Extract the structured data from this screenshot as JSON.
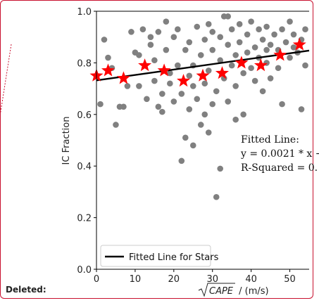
{
  "deleted_label": "Deleted:",
  "chart_data": {
    "type": "scatter",
    "xlabel_sqrt_text": "CAPE",
    "xlabel_suffix": " / (m/s)",
    "ylabel": "IC Fraction",
    "xlim": [
      0,
      55
    ],
    "ylim": [
      0.0,
      1.0
    ],
    "xticks": [
      "0",
      "10",
      "20",
      "30",
      "40",
      "50"
    ],
    "yticks": [
      "0.0",
      "0.2",
      "0.4",
      "0.6",
      "0.8",
      "1.0"
    ],
    "legend": {
      "placement": "lower-left",
      "label": "Fitted Line for Stars"
    },
    "annotation": [
      "Fitted Line:",
      "y = 0.0021 * x +",
      "R-Squared = 0."
    ],
    "colors": {
      "points": "#808080",
      "stars": "#ff0000",
      "line": "#000000",
      "frame": "#c8102e"
    },
    "fitted_line": {
      "slope": 0.0021,
      "intercept": 0.732
    },
    "stars": [
      {
        "x": 0,
        "y": 0.75
      },
      {
        "x": 3,
        "y": 0.77
      },
      {
        "x": 7,
        "y": 0.74
      },
      {
        "x": 12.5,
        "y": 0.79
      },
      {
        "x": 17.5,
        "y": 0.77
      },
      {
        "x": 22.5,
        "y": 0.73
      },
      {
        "x": 27.5,
        "y": 0.75
      },
      {
        "x": 32.5,
        "y": 0.76
      },
      {
        "x": 37.5,
        "y": 0.8
      },
      {
        "x": 42.5,
        "y": 0.79
      },
      {
        "x": 47.5,
        "y": 0.83
      },
      {
        "x": 52.5,
        "y": 0.87
      }
    ],
    "points": [
      {
        "x": 1,
        "y": 0.64
      },
      {
        "x": 2,
        "y": 0.89
      },
      {
        "x": 3,
        "y": 0.82
      },
      {
        "x": 4,
        "y": 0.78
      },
      {
        "x": 5,
        "y": 0.56
      },
      {
        "x": 6,
        "y": 0.63
      },
      {
        "x": 7,
        "y": 0.63
      },
      {
        "x": 8,
        "y": 0.71
      },
      {
        "x": 9,
        "y": 0.92
      },
      {
        "x": 10,
        "y": 0.84
      },
      {
        "x": 11,
        "y": 0.83
      },
      {
        "x": 11,
        "y": 0.71
      },
      {
        "x": 12,
        "y": 0.93
      },
      {
        "x": 13,
        "y": 0.66
      },
      {
        "x": 14,
        "y": 0.87
      },
      {
        "x": 15,
        "y": 0.81
      },
      {
        "x": 15,
        "y": 0.73
      },
      {
        "x": 16,
        "y": 0.63
      },
      {
        "x": 16,
        "y": 0.92
      },
      {
        "x": 17,
        "y": 0.68
      },
      {
        "x": 17,
        "y": 0.61
      },
      {
        "x": 18,
        "y": 0.85
      },
      {
        "x": 19,
        "y": 0.76
      },
      {
        "x": 19,
        "y": 0.72
      },
      {
        "x": 20,
        "y": 0.9
      },
      {
        "x": 20,
        "y": 0.65
      },
      {
        "x": 21,
        "y": 0.93
      },
      {
        "x": 21,
        "y": 0.79
      },
      {
        "x": 22,
        "y": 0.42
      },
      {
        "x": 22,
        "y": 0.68
      },
      {
        "x": 23,
        "y": 0.51
      },
      {
        "x": 23,
        "y": 0.85
      },
      {
        "x": 24,
        "y": 0.62
      },
      {
        "x": 24,
        "y": 0.88
      },
      {
        "x": 25,
        "y": 0.48
      },
      {
        "x": 25,
        "y": 0.71
      },
      {
        "x": 25,
        "y": 0.79
      },
      {
        "x": 26,
        "y": 0.94
      },
      {
        "x": 26,
        "y": 0.66
      },
      {
        "x": 27,
        "y": 0.56
      },
      {
        "x": 27,
        "y": 0.83
      },
      {
        "x": 28,
        "y": 0.6
      },
      {
        "x": 28,
        "y": 0.72
      },
      {
        "x": 28,
        "y": 0.89
      },
      {
        "x": 29,
        "y": 0.53
      },
      {
        "x": 29,
        "y": 0.77
      },
      {
        "x": 30,
        "y": 0.92
      },
      {
        "x": 30,
        "y": 0.64
      },
      {
        "x": 30,
        "y": 0.85
      },
      {
        "x": 31,
        "y": 0.28
      },
      {
        "x": 31,
        "y": 0.69
      },
      {
        "x": 32,
        "y": 0.39
      },
      {
        "x": 32,
        "y": 0.81
      },
      {
        "x": 32,
        "y": 0.9
      },
      {
        "x": 33,
        "y": 0.98
      },
      {
        "x": 33,
        "y": 0.74
      },
      {
        "x": 34,
        "y": 0.87
      },
      {
        "x": 34,
        "y": 0.65
      },
      {
        "x": 35,
        "y": 0.79
      },
      {
        "x": 35,
        "y": 0.93
      },
      {
        "x": 36,
        "y": 0.83
      },
      {
        "x": 36,
        "y": 0.71
      },
      {
        "x": 37,
        "y": 0.88
      },
      {
        "x": 37,
        "y": 0.95
      },
      {
        "x": 38,
        "y": 0.6
      },
      {
        "x": 38,
        "y": 0.76
      },
      {
        "x": 39,
        "y": 0.84
      },
      {
        "x": 39,
        "y": 0.91
      },
      {
        "x": 40,
        "y": 0.78
      },
      {
        "x": 40,
        "y": 0.96
      },
      {
        "x": 41,
        "y": 0.86
      },
      {
        "x": 41,
        "y": 0.73
      },
      {
        "x": 42,
        "y": 0.93
      },
      {
        "x": 42,
        "y": 0.82
      },
      {
        "x": 43,
        "y": 0.69
      },
      {
        "x": 43,
        "y": 0.89
      },
      {
        "x": 44,
        "y": 0.94
      },
      {
        "x": 44,
        "y": 0.8
      },
      {
        "x": 45,
        "y": 0.87
      },
      {
        "x": 45,
        "y": 0.74
      },
      {
        "x": 46,
        "y": 0.91
      },
      {
        "x": 47,
        "y": 0.85
      },
      {
        "x": 47,
        "y": 0.78
      },
      {
        "x": 48,
        "y": 0.93
      },
      {
        "x": 48,
        "y": 0.64
      },
      {
        "x": 49,
        "y": 0.88
      },
      {
        "x": 50,
        "y": 0.82
      },
      {
        "x": 50,
        "y": 0.96
      },
      {
        "x": 51,
        "y": 0.86
      },
      {
        "x": 51,
        "y": 0.91
      },
      {
        "x": 52,
        "y": 0.84
      },
      {
        "x": 53,
        "y": 0.89
      },
      {
        "x": 53,
        "y": 0.62
      },
      {
        "x": 54,
        "y": 0.93
      },
      {
        "x": 54,
        "y": 0.79
      },
      {
        "x": 36,
        "y": 0.58
      },
      {
        "x": 34,
        "y": 0.98
      },
      {
        "x": 29,
        "y": 0.95
      },
      {
        "x": 18,
        "y": 0.96
      },
      {
        "x": 14,
        "y": 0.9
      },
      {
        "x": 24,
        "y": 0.75
      },
      {
        "x": 44,
        "y": 0.85
      }
    ]
  }
}
